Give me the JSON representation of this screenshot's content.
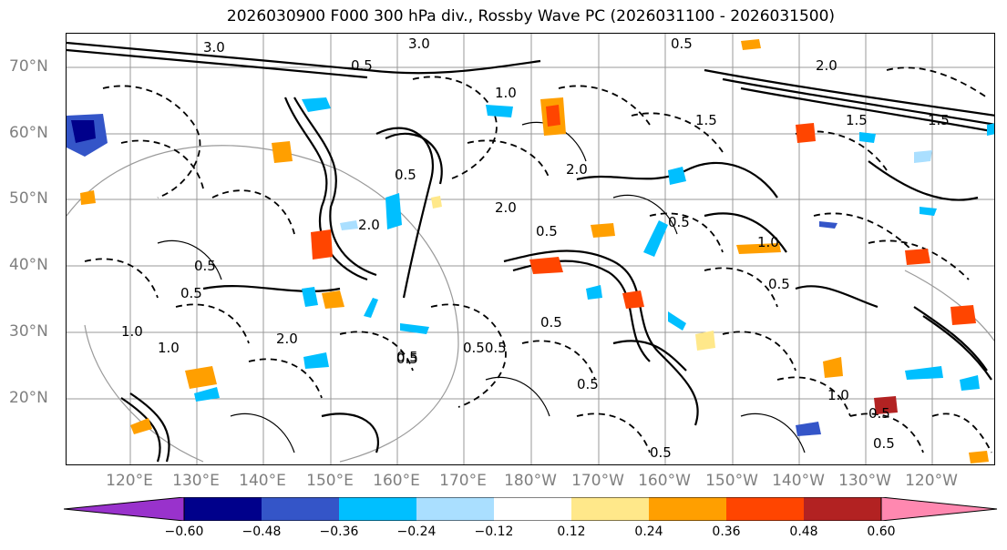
{
  "title": "2026030900 F000 300 hPa div., Rossby Wave PC (2026031100 - 2026031500)",
  "map": {
    "lat_labels": [
      "70°N",
      "60°N",
      "50°N",
      "40°N",
      "30°N",
      "20°N"
    ],
    "lon_labels": [
      "120°E",
      "130°E",
      "140°E",
      "150°E",
      "160°E",
      "170°E",
      "180°W",
      "170°W",
      "160°W",
      "150°W",
      "140°W",
      "130°W",
      "120°W"
    ],
    "contour_labels": [
      "3.0",
      "3.0",
      "0.5",
      "2.0",
      "1.0",
      "1.5",
      "0.5",
      "2.0",
      "0.5",
      "2.0",
      "0.5",
      "0.5",
      "0.5",
      "0.5",
      "1.0",
      "2.0",
      "0.5",
      "0.50.5",
      "1.0",
      "0.5",
      "1.5",
      "0.5",
      "1.0",
      "0.5",
      "1.5",
      "2.0",
      "0.5",
      "0.5",
      "0.5",
      "0.5",
      "1.0"
    ]
  },
  "colorbar": {
    "tick_labels": [
      "−0.60",
      "−0.48",
      "−0.36",
      "−0.24",
      "−0.12",
      "0.12",
      "0.24",
      "0.36",
      "0.48",
      "0.60"
    ],
    "colors": {
      "under": "#9932cc",
      "bins": [
        "#00008b",
        "#3455c8",
        "#00bfff",
        "#aadfff",
        "#ffffff",
        "#ffe88a",
        "#ff9f00",
        "#ff4500",
        "#b22222"
      ],
      "over": "#ff88b0"
    }
  }
}
